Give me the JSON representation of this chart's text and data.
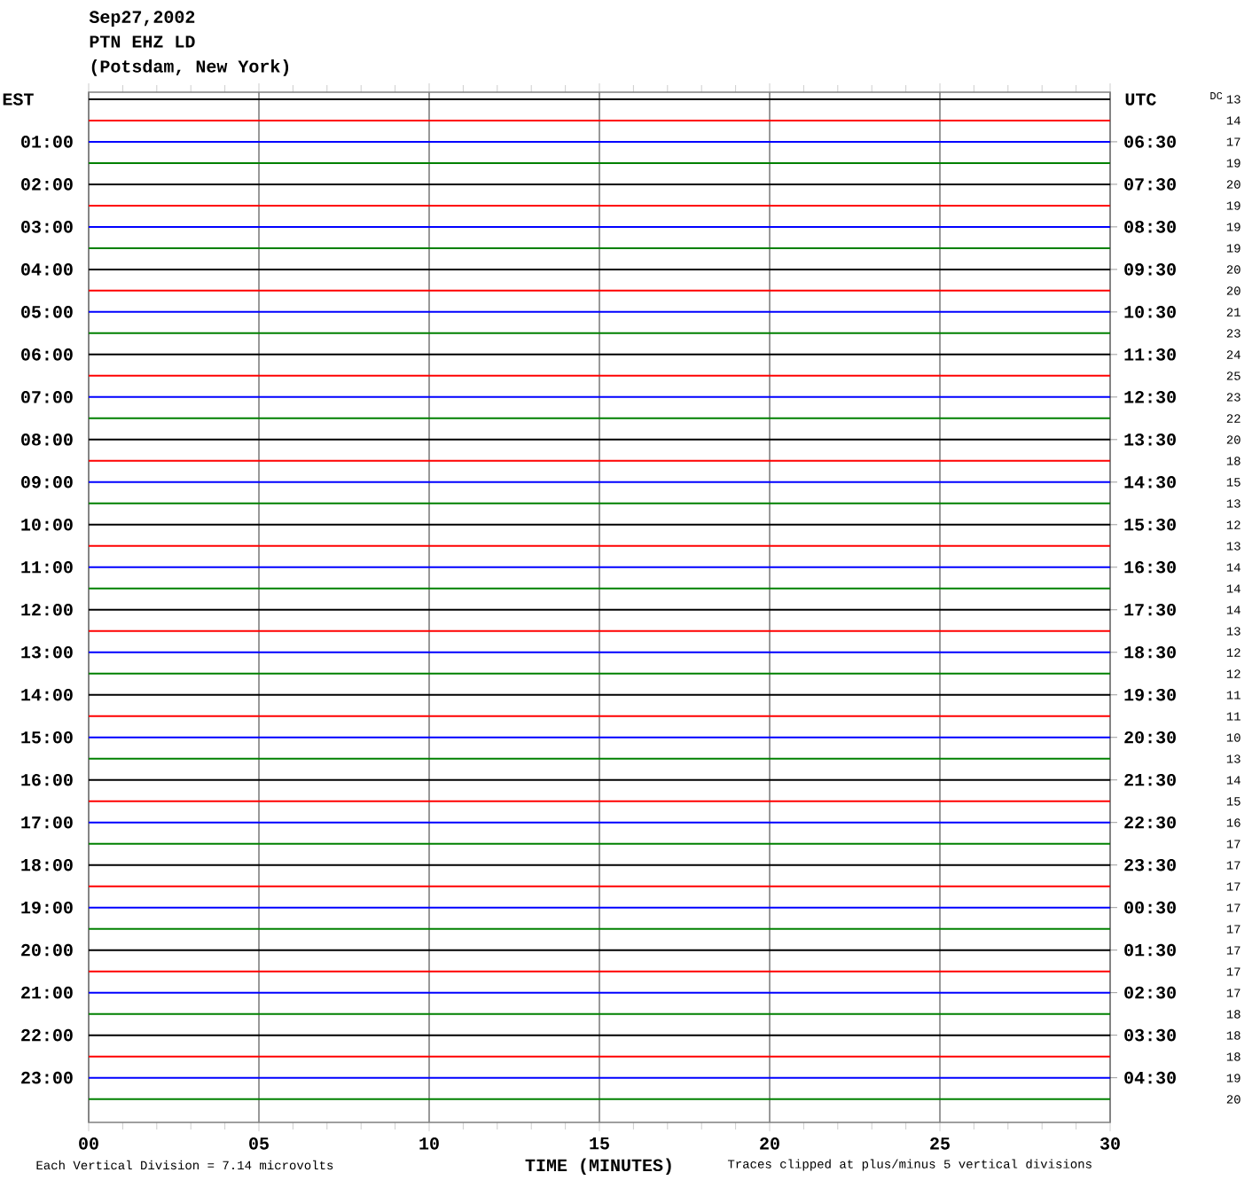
{
  "chart_data": {
    "type": "line",
    "title": "Sep27,2002",
    "subtitle": "PTN EHZ LD\n(Potsdam, New York)",
    "xlabel": "TIME (MINUTES)",
    "ylabel": "EST",
    "y2label": "UTC",
    "annotations": [
      "Each Vertical Division = 7.14 microvolts",
      "Traces clipped at plus/minus 5 vertical divisions",
      "DC",
      "13",
      "14",
      "17",
      "19",
      "20",
      "19",
      "19",
      "19",
      "20",
      "20",
      "21",
      "23",
      "24",
      "25",
      "23",
      "22",
      "20",
      "18",
      "15",
      "13",
      "12",
      "13",
      "14",
      "14",
      "14",
      "13",
      "12",
      "12",
      "11",
      "11",
      "10",
      "13",
      "14",
      "15",
      "16",
      "17",
      "17",
      "17",
      "17",
      "17",
      "17",
      "17",
      "17",
      "18",
      "18",
      "18",
      "19",
      "20"
    ],
    "x": [
      0,
      30
    ],
    "xlim": [
      0,
      30
    ],
    "xticks": [
      {
        "value": 0,
        "label": "00"
      },
      {
        "value": 5,
        "label": "05"
      },
      10,
      15,
      20,
      25,
      30
    ],
    "ylim": [
      24.05,
      -0.165
    ],
    "yticks": [
      {
        "value": 1,
        "label": "01:00"
      },
      {
        "value": 2,
        "label": "02:00"
      },
      {
        "value": 3,
        "label": "03:00"
      },
      {
        "value": 4,
        "label": "04:00"
      },
      {
        "value": 5,
        "label": "05:00"
      },
      {
        "value": 6,
        "label": "06:00"
      },
      {
        "value": 7,
        "label": "07:00"
      },
      {
        "value": 8,
        "label": "08:00"
      },
      {
        "value": 9,
        "label": "09:00"
      },
      {
        "value": 10,
        "label": "10:00"
      },
      {
        "value": 11,
        "label": "11:00"
      },
      {
        "value": 12,
        "label": "12:00"
      },
      {
        "value": 13,
        "label": "13:00"
      },
      {
        "value": 14,
        "label": "14:00"
      },
      {
        "value": 15,
        "label": "15:00"
      },
      {
        "value": 16,
        "label": "16:00"
      },
      {
        "value": 17,
        "label": "17:00"
      },
      {
        "value": 18,
        "label": "18:00"
      },
      {
        "value": 19,
        "label": "19:00"
      },
      {
        "value": 20,
        "label": "20:00"
      },
      {
        "value": 21,
        "label": "21:00"
      },
      {
        "value": 22,
        "label": "22:00"
      },
      {
        "value": 23,
        "label": "23:00"
      }
    ],
    "y2lim": [
      29.55,
      5.335
    ],
    "y2ticks": [
      {
        "value": 6.5,
        "label": "06:30"
      },
      {
        "value": 7.5,
        "label": "07:30"
      },
      {
        "value": 8.5,
        "label": "08:30"
      },
      {
        "value": 9.5,
        "label": "09:30"
      },
      {
        "value": 10.5,
        "label": "10:30"
      },
      {
        "value": 11.5,
        "label": "11:30"
      },
      {
        "value": 12.5,
        "label": "12:30"
      },
      {
        "value": 13.5,
        "label": "13:30"
      },
      {
        "value": 14.5,
        "label": "14:30"
      },
      {
        "value": 15.5,
        "label": "15:30"
      },
      {
        "value": 16.5,
        "label": "16:30"
      },
      {
        "value": 17.5,
        "label": "17:30"
      },
      {
        "value": 18.5,
        "label": "18:30"
      },
      {
        "value": 19.5,
        "label": "19:30"
      },
      {
        "value": 20.5,
        "label": "20:30"
      },
      {
        "value": 21.5,
        "label": "21:30"
      },
      {
        "value": 22.5,
        "label": "22:30"
      },
      {
        "value": 23.5,
        "label": "23:30"
      }
    ],
    "y3lim": [
      5.55,
      -18.665
    ],
    "y3ticks": [
      {
        "value": 0.5,
        "label": "00:30"
      },
      {
        "value": 1.5,
        "label": "01:30"
      },
      {
        "value": 2.5,
        "label": "02:30"
      },
      {
        "value": 3.5,
        "label": "03:30"
      },
      {
        "value": 4.5,
        "label": "04:30"
      }
    ],
    "grid": "x",
    "series": [
      {
        "color": "#000000",
        "values": [
          0,
          0
        ]
      },
      {
        "color": "#ff0000",
        "values": [
          0.5,
          0.5
        ]
      },
      {
        "color": "#0000ff",
        "values": [
          1,
          1
        ]
      },
      {
        "color": "#008000",
        "values": [
          1.5,
          1.5
        ]
      },
      {
        "color": "#000000",
        "values": [
          2,
          2
        ]
      },
      {
        "color": "#ff0000",
        "values": [
          2.5,
          2.5
        ]
      },
      {
        "color": "#0000ff",
        "values": [
          3,
          3
        ]
      },
      {
        "color": "#008000",
        "values": [
          3.5,
          3.5
        ]
      },
      {
        "color": "#000000",
        "values": [
          4,
          4
        ]
      },
      {
        "color": "#ff0000",
        "values": [
          4.5,
          4.5
        ]
      },
      {
        "color": "#0000ff",
        "values": [
          5,
          5
        ]
      },
      {
        "color": "#008000",
        "values": [
          5.5,
          5.5
        ]
      },
      {
        "color": "#000000",
        "values": [
          6,
          6
        ]
      },
      {
        "color": "#ff0000",
        "values": [
          6.5,
          6.5
        ]
      },
      {
        "color": "#0000ff",
        "values": [
          7,
          7
        ]
      },
      {
        "color": "#008000",
        "values": [
          7.5,
          7.5
        ]
      },
      {
        "color": "#000000",
        "values": [
          8,
          8
        ]
      },
      {
        "color": "#ff0000",
        "values": [
          8.5,
          8.5
        ]
      },
      {
        "color": "#0000ff",
        "values": [
          9,
          9
        ]
      },
      {
        "color": "#008000",
        "values": [
          9.5,
          9.5
        ]
      },
      {
        "color": "#000000",
        "values": [
          10,
          10
        ]
      },
      {
        "color": "#ff0000",
        "values": [
          10.5,
          10.5
        ]
      },
      {
        "color": "#0000ff",
        "values": [
          11,
          11
        ]
      },
      {
        "color": "#008000",
        "values": [
          11.5,
          11.5
        ]
      },
      {
        "color": "#000000",
        "values": [
          12,
          12
        ]
      },
      {
        "color": "#ff0000",
        "values": [
          12.5,
          12.5
        ]
      },
      {
        "color": "#0000ff",
        "values": [
          13,
          13
        ]
      },
      {
        "color": "#008000",
        "values": [
          13.5,
          13.5
        ]
      },
      {
        "color": "#000000",
        "values": [
          14,
          14
        ]
      },
      {
        "color": "#ff0000",
        "values": [
          14.5,
          14.5
        ]
      },
      {
        "color": "#0000ff",
        "values": [
          15,
          15
        ]
      },
      {
        "color": "#008000",
        "values": [
          15.5,
          15.5
        ]
      },
      {
        "color": "#000000",
        "values": [
          16,
          16
        ]
      },
      {
        "color": "#ff0000",
        "values": [
          16.5,
          16.5
        ]
      },
      {
        "color": "#0000ff",
        "values": [
          17,
          17
        ]
      },
      {
        "color": "#008000",
        "values": [
          17.5,
          17.5
        ]
      },
      {
        "color": "#000000",
        "values": [
          18,
          18
        ]
      },
      {
        "color": "#ff0000",
        "values": [
          18.5,
          18.5
        ]
      },
      {
        "color": "#0000ff",
        "values": [
          19,
          19
        ]
      },
      {
        "color": "#008000",
        "values": [
          19.5,
          19.5
        ]
      },
      {
        "color": "#000000",
        "values": [
          20,
          20
        ]
      },
      {
        "color": "#ff0000",
        "values": [
          20.5,
          20.5
        ]
      },
      {
        "color": "#0000ff",
        "values": [
          21,
          21
        ]
      },
      {
        "color": "#008000",
        "values": [
          21.5,
          21.5
        ]
      },
      {
        "color": "#000000",
        "values": [
          22,
          22
        ]
      },
      {
        "color": "#ff0000",
        "values": [
          22.5,
          22.5
        ]
      },
      {
        "color": "#0000ff",
        "values": [
          23,
          23
        ]
      },
      {
        "color": "#008000",
        "values": [
          23.5,
          23.5
        ]
      }
    ]
  }
}
